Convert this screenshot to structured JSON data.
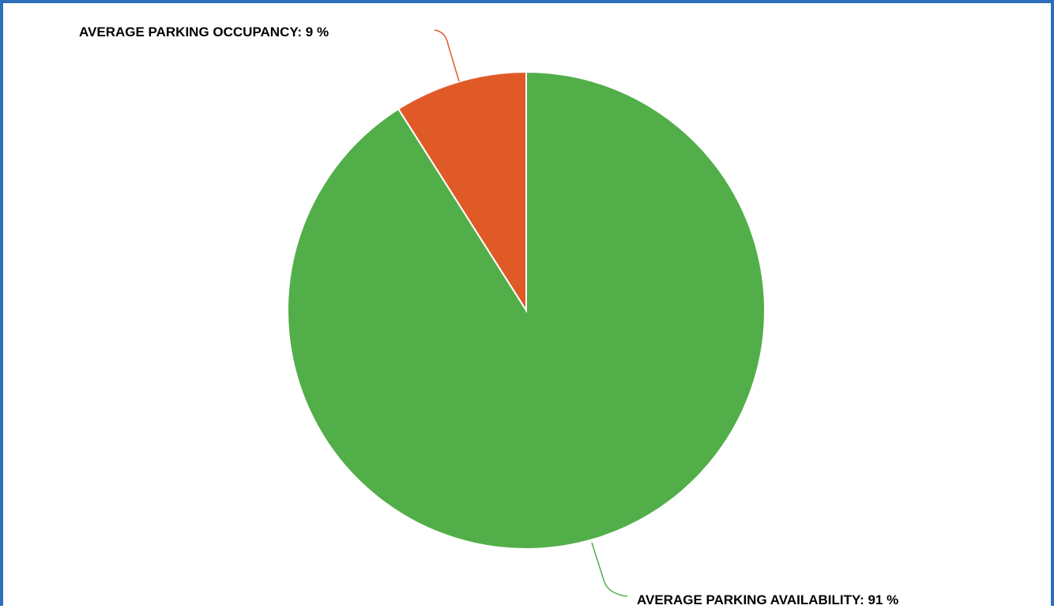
{
  "chart_data": {
    "type": "pie",
    "slices": [
      {
        "label": "AVERAGE PARKING OCCUPANCY: 9 %",
        "value": 9,
        "color": "#e05a28"
      },
      {
        "label": "AVERAGE PARKING AVAILABILITY: 91 %",
        "value": 91,
        "color": "#52ae49"
      }
    ],
    "start_angle": "top",
    "direction": "counter-clockwise from top for first slice"
  },
  "frame_border_color": "#2f6fba"
}
